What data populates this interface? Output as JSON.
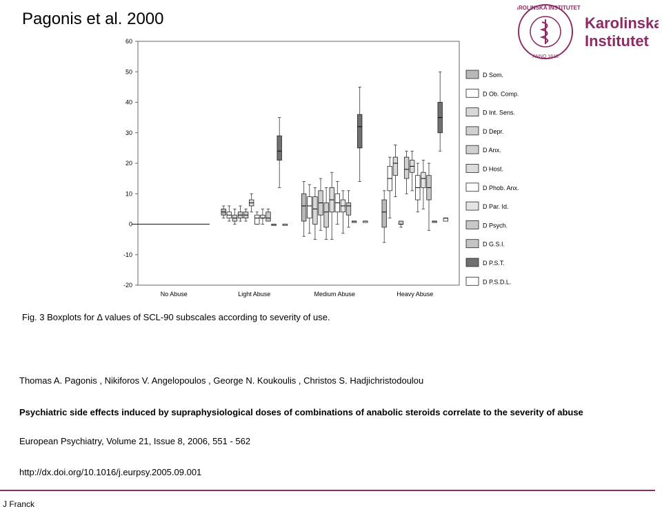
{
  "slide": {
    "title": "Pagonis et al. 2000",
    "caption": "Fig. 3 Boxplots for Δ values of SCL-90 subscales according to severity of use.",
    "authors": "Thomas A.  Pagonis , Nikiforos V.  Angelopoulos , George N.  Koukoulis , Christos S.  Hadjichristodoulou",
    "paper_title": " Psychiatric side effects induced by supraphysiological doses of combinations of anabolic steroids correlate to the severity of abuse",
    "journal": "European Psychiatry, Volume 21, Issue 8, 2006, 551 - 562",
    "doi": "http://dx.doi.org/10.1016/j.eurpsy.2005.09.001",
    "footer": "J Franck"
  },
  "logo": {
    "seal_text": "KAROLINSKA INSTITUTET",
    "seal_year": "ANNO 1810",
    "wordmark_line1": "Karolinska",
    "wordmark_line2": "Institutet",
    "color": "#8c2b63"
  },
  "chart_data": {
    "type": "boxplot",
    "ylim": [
      -20,
      60
    ],
    "yticks": [
      60,
      50,
      40,
      30,
      20,
      10,
      0,
      -10,
      -20
    ],
    "categories": [
      "No Abuse",
      "Light Abuse",
      "Medium Abuse",
      "Heavy Abuse"
    ],
    "legend_position": "right",
    "series": [
      {
        "name": "D Som.",
        "fill": "#b8b8b8",
        "boxes": [
          [
            0,
            0,
            0,
            0,
            0
          ],
          [
            2,
            3,
            4,
            5,
            6
          ],
          [
            -4,
            1,
            6,
            10,
            14
          ],
          [
            -6,
            -1,
            4,
            8,
            11
          ]
        ]
      },
      {
        "name": "D Ob. Comp.",
        "fill": "#ffffff",
        "boxes": [
          [
            0,
            0,
            0,
            0,
            0
          ],
          [
            1,
            2,
            3,
            4,
            6
          ],
          [
            -3,
            2,
            6,
            9,
            13
          ],
          [
            2,
            11,
            15,
            19,
            22
          ]
        ]
      },
      {
        "name": "D Int. Sens.",
        "fill": "#d8d8d8",
        "boxes": [
          [
            0,
            0,
            0,
            0,
            0
          ],
          [
            0,
            1,
            2,
            3,
            5
          ],
          [
            -5,
            0,
            5,
            9,
            12
          ],
          [
            9,
            16,
            20,
            22,
            26
          ]
        ]
      },
      {
        "name": "D Depr.",
        "fill": "#d0d0d0",
        "boxes": [
          [
            0,
            0,
            0,
            0,
            0
          ],
          [
            1,
            2,
            3,
            4,
            6
          ],
          [
            -2,
            3,
            7,
            11,
            15
          ],
          [
            -1,
            0,
            0,
            1,
            1
          ]
        ]
      },
      {
        "name": "D Anx.",
        "fill": "#d0d0d0",
        "boxes": [
          [
            0,
            0,
            0,
            0,
            0
          ],
          [
            1,
            2,
            3,
            4,
            5
          ],
          [
            -5,
            -1,
            4,
            7,
            12
          ],
          [
            10,
            15,
            18,
            22,
            24
          ]
        ]
      },
      {
        "name": "D Host.",
        "fill": "#dcdcdc",
        "boxes": [
          [
            0,
            0,
            0,
            0,
            0
          ],
          [
            4,
            6,
            7,
            8,
            10
          ],
          [
            -5,
            4,
            8,
            12,
            17
          ],
          [
            11,
            17,
            19,
            21,
            24
          ]
        ]
      },
      {
        "name": "D Phob. Anx.",
        "fill": "#ffffff",
        "boxes": [
          [
            0,
            0,
            0,
            0,
            0
          ],
          [
            0,
            0,
            2,
            3,
            4
          ],
          [
            0,
            4,
            7,
            10,
            14
          ],
          [
            4,
            8,
            12,
            16,
            20
          ]
        ]
      },
      {
        "name": "D Par. Id.",
        "fill": "#e4e4e4",
        "boxes": [
          [
            0,
            0,
            0,
            0,
            0
          ],
          [
            0,
            2,
            2,
            3,
            5
          ],
          [
            -3,
            4,
            6,
            8,
            11
          ],
          [
            5,
            12,
            15,
            17,
            21
          ]
        ]
      },
      {
        "name": "D Psych.",
        "fill": "#c8c8c8",
        "boxes": [
          [
            0,
            0,
            0,
            0,
            0
          ],
          [
            1,
            1,
            2,
            4,
            5
          ],
          [
            -1,
            3,
            6,
            7,
            11
          ],
          [
            -2,
            8,
            12,
            16,
            20
          ]
        ]
      },
      {
        "name": "D G.S.I.",
        "fill": "#c4c4c4",
        "boxes": [
          [
            0,
            0,
            0,
            0,
            0
          ],
          [
            0,
            0,
            0,
            0,
            0
          ],
          [
            1,
            1,
            1,
            1,
            1
          ],
          [
            1,
            1,
            1,
            1,
            1
          ]
        ]
      },
      {
        "name": "D P.S.T.",
        "fill": "#707070",
        "boxes": [
          [
            0,
            0,
            0,
            0,
            0
          ],
          [
            12,
            21,
            24,
            29,
            35
          ],
          [
            14,
            25,
            32,
            36,
            45
          ],
          [
            24,
            30,
            35,
            40,
            50
          ]
        ]
      },
      {
        "name": "D P.S.D.L.",
        "fill": "#ffffff",
        "boxes": [
          [
            0,
            0,
            0,
            0,
            0
          ],
          [
            0,
            0,
            0,
            0,
            0
          ],
          [
            1,
            1,
            1,
            1,
            1
          ],
          [
            1,
            1,
            2,
            2,
            2
          ]
        ]
      }
    ]
  }
}
